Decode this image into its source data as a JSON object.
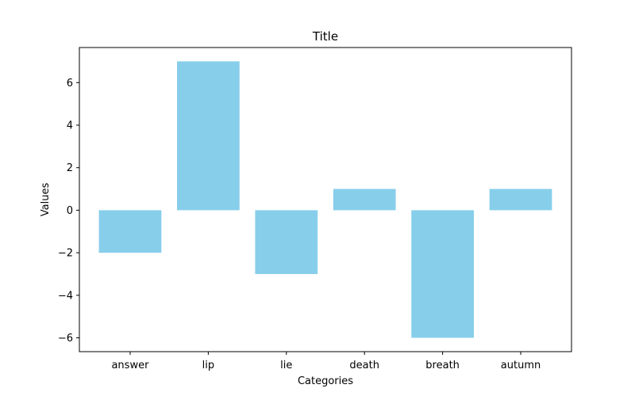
{
  "chart_data": {
    "type": "bar",
    "title": "Title",
    "xlabel": "Categories",
    "ylabel": "Values",
    "categories": [
      "answer",
      "lip",
      "lie",
      "death",
      "breath",
      "autumn"
    ],
    "values": [
      -2,
      7,
      -3,
      1,
      -6,
      1
    ],
    "ylim": [
      -6.65,
      7.65
    ],
    "yticks": [
      -6,
      -4,
      -2,
      0,
      2,
      4,
      6
    ],
    "ytick_labels": [
      "−6",
      "−4",
      "−2",
      "0",
      "2",
      "4",
      "6"
    ],
    "bar_color": "#87CEEB",
    "grid": false,
    "legend": false
  }
}
